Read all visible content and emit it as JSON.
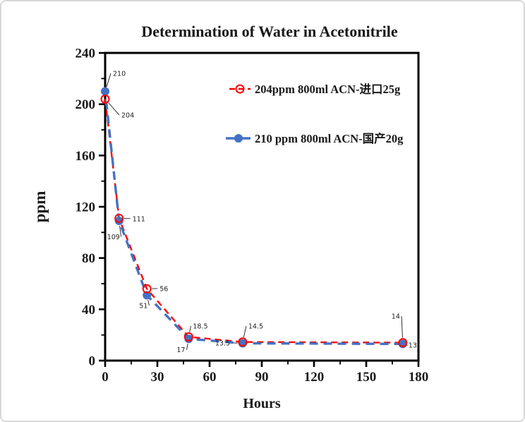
{
  "window": {
    "background": "#ffffff",
    "border_color": "#d8d8d8"
  },
  "chart_data": {
    "type": "line",
    "title": "Determination of Water in Acetonitrile",
    "xlabel": "Hours",
    "ylabel": "ppm",
    "xlim": [
      0,
      180
    ],
    "ylim": [
      0,
      240
    ],
    "x_major_ticks": [
      0,
      30,
      60,
      90,
      120,
      150,
      180
    ],
    "x_minor_ticks": [
      15,
      45,
      75,
      105,
      135,
      165
    ],
    "y_major_ticks": [
      0,
      40,
      80,
      120,
      160,
      200,
      240
    ],
    "y_minor_ticks": [
      20,
      60,
      100,
      140,
      180,
      220
    ],
    "grid": "off",
    "legend_position": "inside-top-right",
    "axis_color": "#000000",
    "series": [
      {
        "name": "204ppm  800ml ACN-进口25g",
        "color": "#ff0000",
        "marker": "open-circle",
        "line_style": "dashed",
        "points": [
          {
            "x": 0,
            "y": 204,
            "label": "204",
            "ldx": 23,
            "ldy": 26
          },
          {
            "x": 8,
            "y": 111,
            "label": "111",
            "ldx": 19,
            "ldy": 4
          },
          {
            "x": 24,
            "y": 56,
            "label": "56",
            "ldx": 18,
            "ldy": 3
          },
          {
            "x": 48,
            "y": 18.5,
            "label": "18.5",
            "ldx": 6,
            "ldy": -12
          },
          {
            "x": 79,
            "y": 14.5,
            "label": "14.5",
            "ldx": 8,
            "ldy": -19
          },
          {
            "x": 171,
            "y": 14,
            "label": "14",
            "ldx": -16,
            "ldy": -34
          }
        ]
      },
      {
        "name": "210 ppm 800ml ACN-国产20g",
        "color": "#4472c4",
        "marker": "filled-circle",
        "line_style": "dashed",
        "points": [
          {
            "x": 0,
            "y": 210,
            "label": "210",
            "ldx": 11,
            "ldy": -22
          },
          {
            "x": 8,
            "y": 109,
            "label": "109",
            "ldx": -17,
            "ldy": 26
          },
          {
            "x": 24,
            "y": 51,
            "label": "51",
            "ldx": -11,
            "ldy": 18
          },
          {
            "x": 48,
            "y": 17,
            "label": "17",
            "ldx": -17,
            "ldy": 19
          },
          {
            "x": 79,
            "y": 13.5,
            "label": "13.5",
            "ldx": -39,
            "ldy": 3
          },
          {
            "x": 171,
            "y": 13,
            "label": "13",
            "ldx": 8,
            "ldy": 5
          }
        ]
      }
    ]
  }
}
